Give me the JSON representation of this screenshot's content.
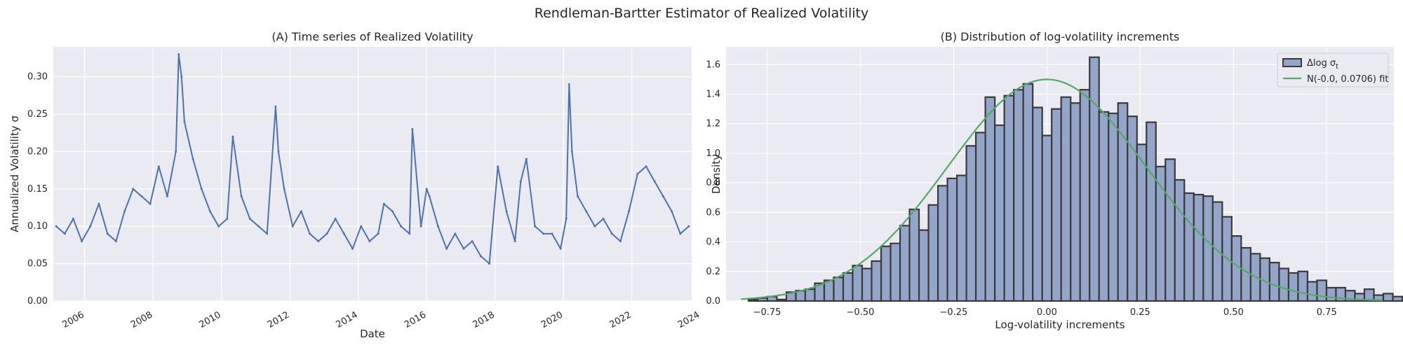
{
  "suptitle": "Rendleman-Bartter Estimator of Realized Volatility",
  "colors": {
    "panel_bg": "#eaeaf2",
    "grid": "#ffffff",
    "line": "#4c72b0",
    "hist_fill": "#93a6c9",
    "hist_edge": "#3a3a3a",
    "fit_line": "#55a868"
  },
  "chart_data": [
    {
      "type": "line",
      "title": "(A) Time series of Realized Volatility",
      "xlabel": "Date",
      "ylabel": "Annualized Volatility σ",
      "x_range": [
        "2005-02",
        "2023-10"
      ],
      "ylim": [
        0.0,
        0.34
      ],
      "x_ticks": [
        "2006",
        "2008",
        "2010",
        "2012",
        "2014",
        "2016",
        "2018",
        "2020",
        "2022",
        "2024"
      ],
      "y_ticks": [
        "0.00",
        "0.05",
        "0.10",
        "0.15",
        "0.20",
        "0.25",
        "0.30"
      ],
      "grid": true,
      "series": [
        {
          "x": [
            "2005-03",
            "2005-06",
            "2005-09",
            "2005-12",
            "2006-03",
            "2006-06",
            "2006-09",
            "2006-12",
            "2007-03",
            "2007-06",
            "2007-09",
            "2007-12",
            "2008-03",
            "2008-06",
            "2008-09",
            "2008-10",
            "2008-11",
            "2008-12",
            "2009-03",
            "2009-06",
            "2009-09",
            "2009-12",
            "2010-03",
            "2010-05",
            "2010-08",
            "2010-11",
            "2011-02",
            "2011-05",
            "2011-08",
            "2011-09",
            "2011-11",
            "2012-02",
            "2012-05",
            "2012-08",
            "2012-11",
            "2013-02",
            "2013-05",
            "2013-08",
            "2013-11",
            "2014-02",
            "2014-05",
            "2014-08",
            "2014-10",
            "2015-01",
            "2015-04",
            "2015-07",
            "2015-08",
            "2015-11",
            "2016-01",
            "2016-02",
            "2016-05",
            "2016-08",
            "2016-11",
            "2017-02",
            "2017-05",
            "2017-08",
            "2017-11",
            "2018-02",
            "2018-05",
            "2018-08",
            "2018-10",
            "2018-12",
            "2019-03",
            "2019-06",
            "2019-09",
            "2019-12",
            "2020-02",
            "2020-03",
            "2020-04",
            "2020-06",
            "2020-09",
            "2020-12",
            "2021-03",
            "2021-06",
            "2021-09",
            "2021-12",
            "2022-03",
            "2022-06",
            "2022-09",
            "2022-12",
            "2023-03",
            "2023-06",
            "2023-09"
          ],
          "y": [
            0.1,
            0.09,
            0.11,
            0.08,
            0.1,
            0.13,
            0.09,
            0.08,
            0.12,
            0.15,
            0.14,
            0.13,
            0.18,
            0.14,
            0.2,
            0.33,
            0.3,
            0.24,
            0.19,
            0.15,
            0.12,
            0.1,
            0.11,
            0.22,
            0.14,
            0.11,
            0.1,
            0.09,
            0.26,
            0.2,
            0.15,
            0.1,
            0.12,
            0.09,
            0.08,
            0.09,
            0.11,
            0.09,
            0.07,
            0.1,
            0.08,
            0.09,
            0.13,
            0.12,
            0.1,
            0.09,
            0.23,
            0.1,
            0.15,
            0.14,
            0.1,
            0.07,
            0.09,
            0.07,
            0.08,
            0.06,
            0.05,
            0.18,
            0.12,
            0.08,
            0.16,
            0.19,
            0.1,
            0.09,
            0.09,
            0.07,
            0.11,
            0.29,
            0.2,
            0.14,
            0.12,
            0.1,
            0.11,
            0.09,
            0.08,
            0.12,
            0.17,
            0.18,
            0.16,
            0.14,
            0.12,
            0.09,
            0.1
          ]
        }
      ]
    },
    {
      "type": "bar",
      "title": "(B) Distribution of log-volatility increments",
      "xlabel": "Log-volatility increments",
      "ylabel": "Density",
      "xlim": [
        -0.86,
        0.93
      ],
      "ylim": [
        0.0,
        1.72
      ],
      "x_ticks": [
        "−0.75",
        "−0.50",
        "−0.25",
        "0.00",
        "0.25",
        "0.50",
        "0.75"
      ],
      "y_ticks": [
        "0.0",
        "0.2",
        "0.4",
        "0.6",
        "0.8",
        "1.0",
        "1.2",
        "1.4",
        "1.6"
      ],
      "grid": true,
      "legend_position": "top-right",
      "bin_width": 0.0254,
      "bin_start": -0.8,
      "densities": [
        0.01,
        0.02,
        0.03,
        0.01,
        0.06,
        0.07,
        0.08,
        0.12,
        0.14,
        0.16,
        0.19,
        0.24,
        0.22,
        0.27,
        0.37,
        0.39,
        0.51,
        0.62,
        0.48,
        0.65,
        0.78,
        0.83,
        0.85,
        1.05,
        1.14,
        1.38,
        1.19,
        1.39,
        1.43,
        1.47,
        1.31,
        1.12,
        1.3,
        1.38,
        1.34,
        1.43,
        1.65,
        1.28,
        1.27,
        1.34,
        1.25,
        1.06,
        1.21,
        0.91,
        0.96,
        0.82,
        0.73,
        0.72,
        0.71,
        0.67,
        0.57,
        0.44,
        0.36,
        0.32,
        0.29,
        0.26,
        0.22,
        0.19,
        0.2,
        0.13,
        0.14,
        0.09,
        0.09,
        0.07,
        0.05,
        0.08,
        0.04,
        0.05,
        0.03,
        0.02,
        0.02,
        0.01,
        0.01,
        0.01,
        0.02
      ],
      "legend": [
        {
          "label_prefix": "Δlog σ",
          "label_sub": "t",
          "kind": "bar"
        },
        {
          "label": "N(-0.0, 0.0706) fit",
          "kind": "line"
        }
      ],
      "fit": {
        "mean": 0.0,
        "variance": 0.0706,
        "peak_density": 1.5
      }
    }
  ]
}
